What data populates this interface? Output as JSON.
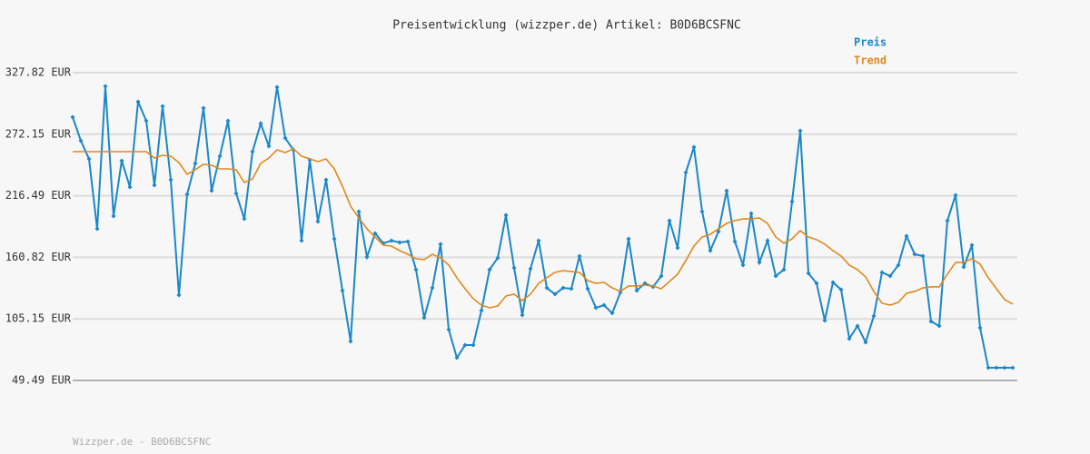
{
  "chart_data": {
    "type": "line",
    "title": "Preisentwicklung (wizzper.de) Artikel: B0D6BCSFNC",
    "footer": "Wizzper.de - B0D6BCSFNC",
    "categories": [
      null,
      null,
      null,
      null,
      null,
      null,
      null,
      null,
      null,
      null,
      null,
      null,
      null,
      null,
      null,
      null,
      null,
      null,
      null,
      null,
      null,
      null,
      null,
      null,
      null,
      null,
      null,
      null,
      null,
      null,
      null,
      null,
      null,
      null,
      null,
      null,
      null,
      null,
      null,
      null,
      null,
      null,
      null,
      null,
      null,
      null,
      null,
      null,
      null,
      null,
      null,
      null,
      null,
      null,
      null,
      null,
      null,
      null,
      null,
      null,
      null,
      null,
      null,
      null,
      null,
      null,
      null,
      null,
      null,
      null,
      null,
      null,
      null,
      null,
      null,
      null,
      null,
      null,
      null,
      null,
      null,
      null,
      null,
      null,
      null,
      null,
      null,
      null,
      null,
      null,
      null,
      null,
      null,
      null,
      null,
      null,
      null,
      null,
      null,
      null,
      null,
      null,
      null,
      null,
      null,
      null,
      null,
      null,
      null,
      null,
      null,
      null,
      null,
      null,
      null,
      null
    ],
    "ylim": [
      49.49,
      327.82
    ],
    "yticks": [
      {
        "value": 49.49,
        "label": "49.49 EUR"
      },
      {
        "value": 105.15,
        "label": "105.15 EUR"
      },
      {
        "value": 160.82,
        "label": "160.82 EUR"
      },
      {
        "value": 216.49,
        "label": "216.49 EUR"
      },
      {
        "value": 272.15,
        "label": "272.15 EUR"
      },
      {
        "value": 327.82,
        "label": "327.82 EUR"
      }
    ],
    "grid": true,
    "legend": "top-right",
    "series": [
      {
        "name": "Preis",
        "color": "#1b87c9",
        "marker": "diamond",
        "values": [
          287.6,
          266.2,
          249.8,
          186.6,
          315.5,
          198.1,
          248.2,
          224.4,
          301.5,
          284.3,
          226.0,
          297.4,
          230.9,
          126.7,
          217.8,
          245.7,
          295.8,
          221.1,
          252.3,
          284.3,
          218.6,
          195.6,
          256.4,
          281.8,
          261.3,
          314.7,
          268.7,
          258.0,
          175.9,
          249.0,
          193.2,
          230.9,
          177.6,
          130.8,
          84.8,
          202.2,
          161.2,
          182.5,
          173.5,
          175.9,
          174.3,
          175.1,
          149.7,
          106.1,
          133.2,
          172.7,
          95.5,
          70.0,
          81.5,
          81.5,
          112.7,
          149.7,
          160.3,
          198.9,
          151.3,
          108.6,
          150.5,
          175.9,
          133.2,
          127.5,
          133.2,
          132.4,
          162.0,
          132.4,
          115.2,
          117.6,
          110.3,
          129.1,
          177.6,
          130.8,
          137.3,
          134.1,
          143.9,
          194.0,
          169.4,
          237.5,
          260.5,
          202.2,
          166.9,
          184.1,
          221.1,
          175.1,
          153.8,
          200.6,
          156.2,
          175.9,
          143.9,
          149.7,
          211.2,
          275.3,
          146.4,
          137.3,
          103.7,
          138.2,
          131.6,
          87.3,
          98.8,
          84.0,
          107.8,
          147.2,
          143.9,
          153.8,
          180.0,
          163.6,
          162.0,
          102.9,
          98.8,
          194.0,
          217.0,
          152.1,
          171.8,
          97.1,
          61.0,
          61.0,
          61.0,
          61.0
        ]
      },
      {
        "name": "Trend",
        "color": "#e0891c",
        "values": [
          256.4,
          256.4,
          256.4,
          256.4,
          256.4,
          256.4,
          256.4,
          256.4,
          256.4,
          256.4,
          250.6,
          253.1,
          252.3,
          246.5,
          235.9,
          240.0,
          244.9,
          244.1,
          240.8,
          240.8,
          240.0,
          228.5,
          231.8,
          245.7,
          250.6,
          258.0,
          255.6,
          258.9,
          252.3,
          249.8,
          247.4,
          249.8,
          240.8,
          225.2,
          207.1,
          196.5,
          186.6,
          179.2,
          171.8,
          171.0,
          166.9,
          163.6,
          159.5,
          158.7,
          163.6,
          160.3,
          153.8,
          142.3,
          132.4,
          123.4,
          117.6,
          115.2,
          116.8,
          125.9,
          127.5,
          121.7,
          127.5,
          137.3,
          142.3,
          147.2,
          148.8,
          148.0,
          147.2,
          139.8,
          137.3,
          138.2,
          133.2,
          130.0,
          134.9,
          134.9,
          135.7,
          134.9,
          132.4,
          139.0,
          145.6,
          157.9,
          171.0,
          179.2,
          181.7,
          186.6,
          191.5,
          194.0,
          195.6,
          195.6,
          196.5,
          191.5,
          179.2,
          173.5,
          177.6,
          185.0,
          179.2,
          176.8,
          172.7,
          166.9,
          162.0,
          153.8,
          149.7,
          143.1,
          130.0,
          119.3,
          117.6,
          120.1,
          128.3,
          130.0,
          133.2,
          134.1,
          134.1,
          145.6,
          156.2,
          156.2,
          159.5,
          154.6,
          142.3,
          132.4,
          122.6,
          118.5
        ]
      }
    ]
  }
}
